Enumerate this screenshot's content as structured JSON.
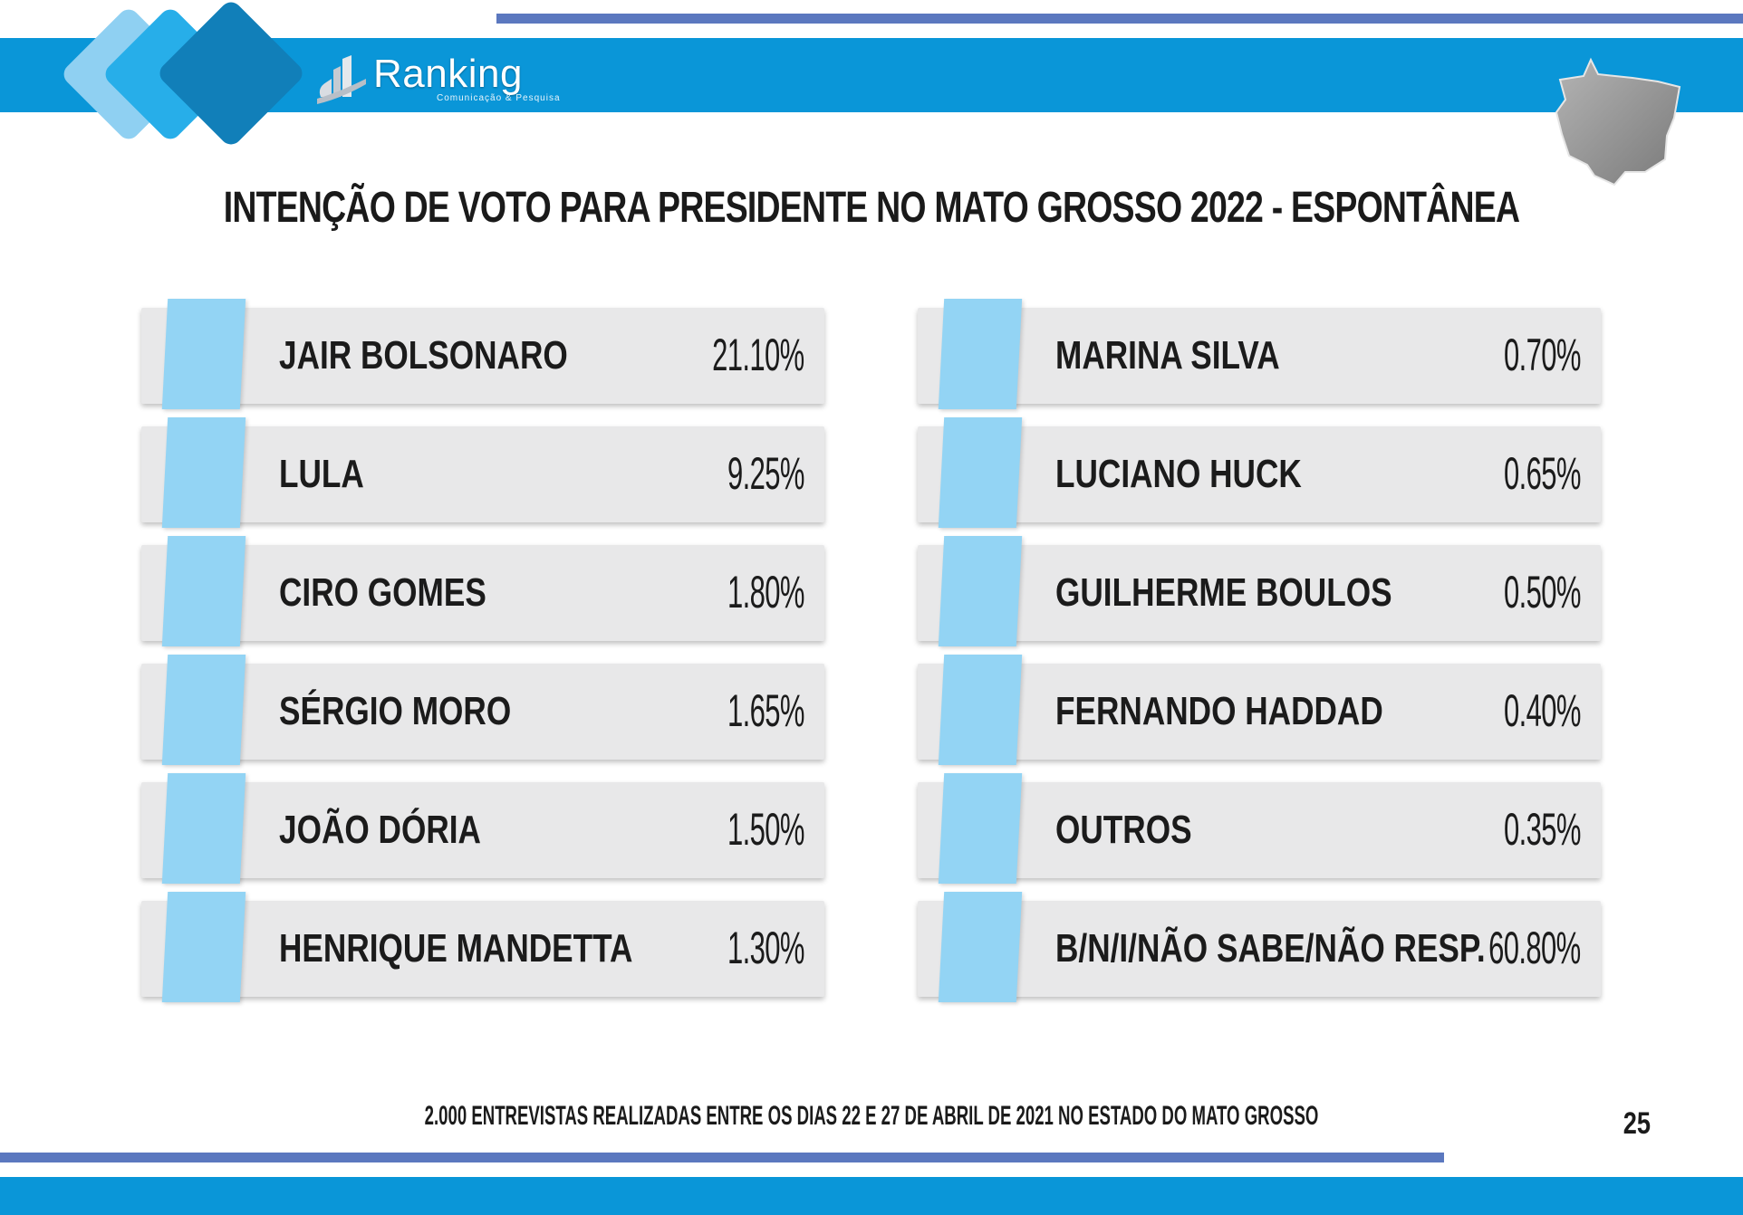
{
  "header": {
    "logo_name": "Ranking",
    "logo_tagline": "Comunicação & Pesquisa",
    "accent_color": "#0a96d8",
    "line_color": "#5b78bf",
    "map_icon": "mato-grosso-state-icon"
  },
  "title": "INTENÇÃO DE VOTO PARA PRESIDENTE NO MATO GROSSO 2022 - ESPONTÂNEA",
  "candidates_left": [
    {
      "name": "JAIR BOLSONARO",
      "value": "21.10%"
    },
    {
      "name": "LULA",
      "value": "9.25%"
    },
    {
      "name": "CIRO GOMES",
      "value": "1.80%"
    },
    {
      "name": "SÉRGIO MORO",
      "value": "1.65%"
    },
    {
      "name": "JOÃO DÓRIA",
      "value": "1.50%"
    },
    {
      "name": "HENRIQUE MANDETTA",
      "value": "1.30%"
    }
  ],
  "candidates_right": [
    {
      "name": "MARINA SILVA",
      "value": "0.70%"
    },
    {
      "name": "LUCIANO HUCK",
      "value": "0.65%"
    },
    {
      "name": "GUILHERME BOULOS",
      "value": "0.50%"
    },
    {
      "name": "FERNANDO HADDAD",
      "value": "0.40%"
    },
    {
      "name": "OUTROS",
      "value": "0.35%"
    },
    {
      "name": "B/N/I/NÃO SABE/NÃO RESP.",
      "value": "60.80%"
    }
  ],
  "footer": {
    "note": "2.000 ENTREVISTAS REALIZADAS ENTRE OS DIAS 22 E 27 DE ABRIL DE 2021 NO ESTADO DO MATO GROSSO",
    "page_number": "25"
  },
  "colors": {
    "card_bg": "#e8e8e9",
    "tab_bg": "#93d4f4"
  }
}
